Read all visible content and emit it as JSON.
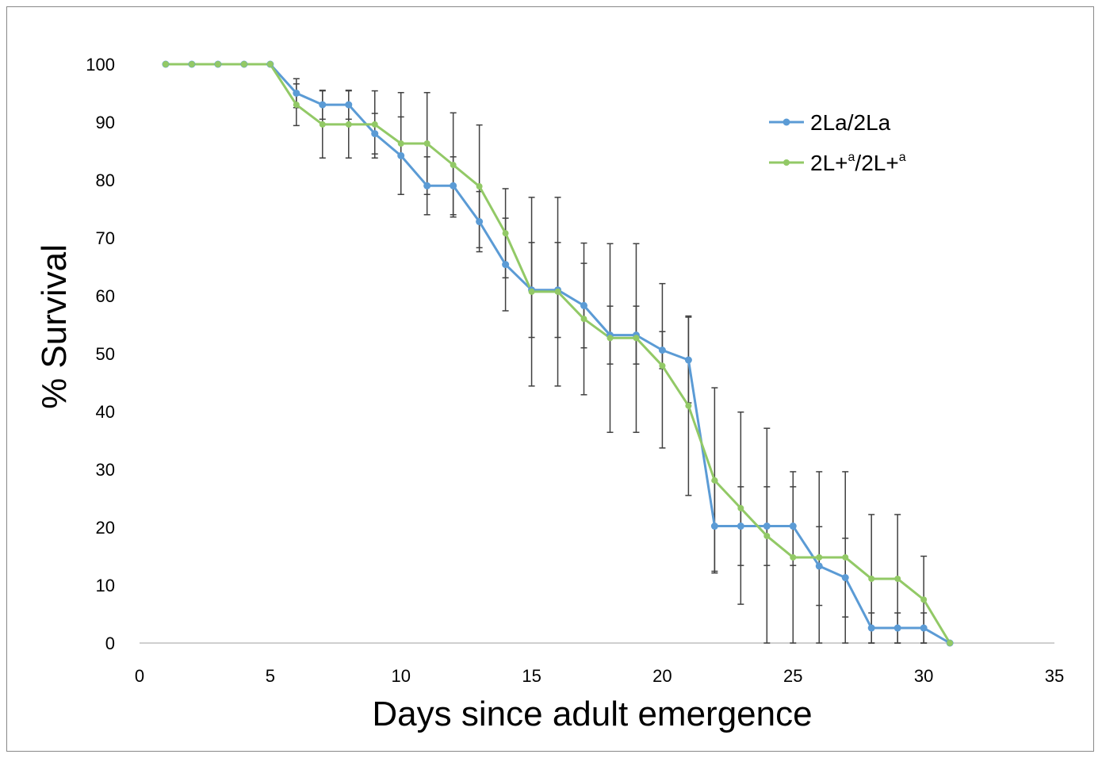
{
  "chart_data": {
    "type": "line",
    "xlabel": "Days since adult emergence",
    "ylabel": "% Survival",
    "xlim": [
      0,
      35
    ],
    "ylim": [
      0,
      100
    ],
    "xticks": [
      0,
      5,
      10,
      15,
      20,
      25,
      30,
      35
    ],
    "yticks": [
      0,
      10,
      20,
      30,
      40,
      50,
      60,
      70,
      80,
      90,
      100
    ],
    "grid": false,
    "legend_position": "top-right",
    "x": [
      1,
      2,
      3,
      4,
      5,
      6,
      7,
      8,
      9,
      10,
      11,
      12,
      13,
      14,
      15,
      16,
      17,
      18,
      19,
      20,
      21,
      22,
      23,
      24,
      25,
      26,
      27,
      28,
      29,
      30,
      31
    ],
    "series": [
      {
        "name": "2La/2La",
        "color": "#5B9BD5",
        "values": [
          100,
          100,
          100,
          100,
          100,
          95,
          93,
          93,
          88,
          84.2,
          79,
          79,
          72.8,
          65.4,
          61,
          61,
          58.3,
          53.2,
          53.2,
          50.6,
          48.9,
          20.2,
          20.2,
          20.2,
          20.2,
          13.3,
          11.3,
          2.6,
          2.6,
          2.6,
          0
        ],
        "error": [
          0,
          0,
          0,
          0,
          0,
          2.5,
          2.5,
          2.5,
          3.5,
          6.7,
          5,
          5,
          5.2,
          8,
          8.2,
          8.2,
          7.3,
          5,
          5,
          3.2,
          7.4,
          7.8,
          6.8,
          6.8,
          6.8,
          6.8,
          6.8,
          2.6,
          2.6,
          2.6,
          0
        ]
      },
      {
        "name": "2L+a/2L+a",
        "name_base": "2L+",
        "name_sup": "a",
        "color": "#92C966",
        "values": [
          100,
          100,
          100,
          100,
          100,
          93,
          89.6,
          89.6,
          89.6,
          86.3,
          86.3,
          82.6,
          78.9,
          70.8,
          60.7,
          60.7,
          56,
          52.7,
          52.7,
          47.9,
          41,
          28.1,
          23.3,
          18.5,
          14.8,
          14.8,
          14.8,
          11.1,
          11.1,
          7.5,
          0
        ],
        "error": [
          0,
          0,
          0,
          0,
          0,
          3.6,
          5.8,
          5.8,
          5.8,
          8.8,
          8.8,
          9,
          10.6,
          7.7,
          16.3,
          16.3,
          13.1,
          16.3,
          16.3,
          14.2,
          15.5,
          16,
          16.6,
          18.6,
          14.8,
          14.8,
          14.8,
          11.1,
          11.1,
          7.5,
          0
        ]
      }
    ]
  }
}
